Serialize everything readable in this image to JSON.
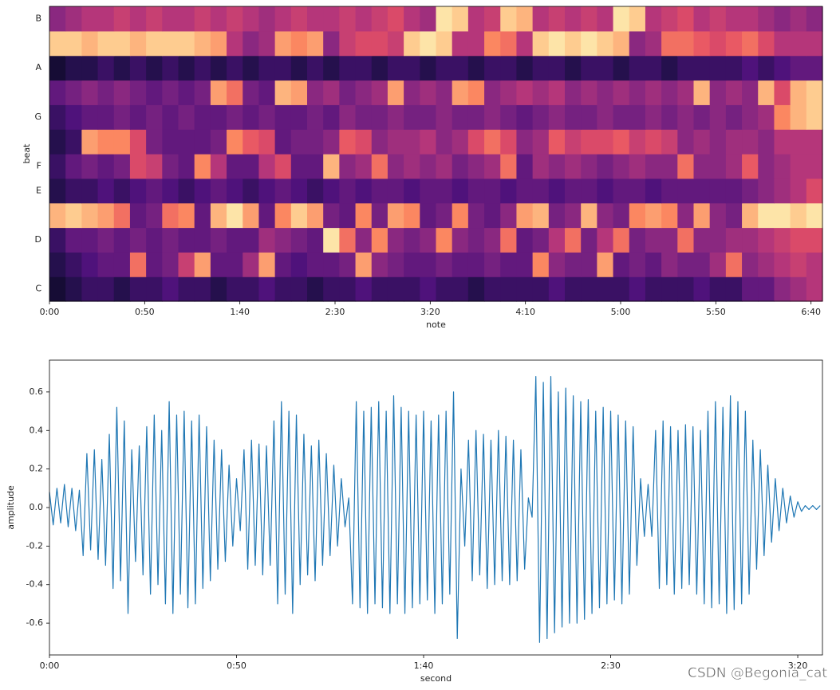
{
  "chart_data": [
    {
      "type": "heatmap",
      "x_label": "note",
      "y_label": "beat",
      "colormap": "magma",
      "xlim": [
        0,
        406
      ],
      "xticks": [
        {
          "value": 0,
          "label": "0:00"
        },
        {
          "value": 50,
          "label": "0:50"
        },
        {
          "value": 100,
          "label": "1:40"
        },
        {
          "value": 150,
          "label": "2:30"
        },
        {
          "value": 200,
          "label": "3:20"
        },
        {
          "value": 250,
          "label": "4:10"
        },
        {
          "value": 300,
          "label": "5:00"
        },
        {
          "value": 350,
          "label": "5:50"
        },
        {
          "value": 400,
          "label": "6:40"
        }
      ],
      "y_categories": [
        "C",
        null,
        "D",
        null,
        "E",
        "F",
        null,
        "G",
        null,
        "A",
        null,
        "B"
      ],
      "z": [
        [
          0.1,
          0.15,
          0.2,
          0.2,
          0.15,
          0.2,
          0.2,
          0.25,
          0.2,
          0.2,
          0.15,
          0.2,
          0.2,
          0.25,
          0.2,
          0.2,
          0.15,
          0.2,
          0.2,
          0.25,
          0.2,
          0.2,
          0.2,
          0.25,
          0.2,
          0.2,
          0.15,
          0.2,
          0.2,
          0.2,
          0.2,
          0.25,
          0.2,
          0.2,
          0.2,
          0.2,
          0.25,
          0.2,
          0.2,
          0.2,
          0.25,
          0.2,
          0.2,
          0.3,
          0.3,
          0.4,
          0.45,
          0.5
        ],
        [
          0.15,
          0.2,
          0.25,
          0.3,
          0.3,
          0.7,
          0.3,
          0.35,
          0.55,
          0.8,
          0.3,
          0.3,
          0.45,
          0.8,
          0.3,
          0.25,
          0.3,
          0.3,
          0.35,
          0.8,
          0.4,
          0.35,
          0.3,
          0.3,
          0.35,
          0.3,
          0.3,
          0.35,
          0.3,
          0.3,
          0.75,
          0.4,
          0.35,
          0.35,
          0.8,
          0.3,
          0.35,
          0.3,
          0.4,
          0.35,
          0.35,
          0.45,
          0.7,
          0.4,
          0.45,
          0.5,
          0.55,
          0.5
        ],
        [
          0.2,
          0.3,
          0.3,
          0.35,
          0.3,
          0.35,
          0.3,
          0.35,
          0.3,
          0.3,
          0.35,
          0.3,
          0.3,
          0.45,
          0.4,
          0.35,
          0.3,
          0.95,
          0.7,
          0.4,
          0.75,
          0.4,
          0.35,
          0.4,
          0.75,
          0.4,
          0.35,
          0.4,
          0.7,
          0.3,
          0.35,
          0.5,
          0.7,
          0.35,
          0.5,
          0.7,
          0.35,
          0.4,
          0.4,
          0.7,
          0.4,
          0.4,
          0.45,
          0.45,
          0.5,
          0.55,
          0.6,
          0.6
        ],
        [
          0.85,
          0.9,
          0.85,
          0.8,
          0.7,
          0.3,
          0.35,
          0.7,
          0.75,
          0.3,
          0.85,
          0.95,
          0.8,
          0.3,
          0.75,
          0.9,
          0.8,
          0.35,
          0.3,
          0.75,
          0.35,
          0.8,
          0.75,
          0.3,
          0.35,
          0.75,
          0.35,
          0.3,
          0.4,
          0.8,
          0.85,
          0.35,
          0.4,
          0.85,
          0.4,
          0.35,
          0.75,
          0.8,
          0.75,
          0.4,
          0.8,
          0.4,
          0.35,
          0.85,
          0.95,
          0.95,
          0.9,
          0.95
        ],
        [
          0.15,
          0.2,
          0.2,
          0.25,
          0.2,
          0.25,
          0.3,
          0.25,
          0.2,
          0.25,
          0.3,
          0.25,
          0.2,
          0.25,
          0.3,
          0.25,
          0.2,
          0.25,
          0.3,
          0.25,
          0.3,
          0.3,
          0.25,
          0.3,
          0.3,
          0.25,
          0.3,
          0.3,
          0.25,
          0.3,
          0.3,
          0.25,
          0.3,
          0.3,
          0.25,
          0.3,
          0.3,
          0.25,
          0.3,
          0.3,
          0.3,
          0.3,
          0.3,
          0.35,
          0.4,
          0.45,
          0.5,
          0.6
        ],
        [
          0.2,
          0.3,
          0.35,
          0.3,
          0.35,
          0.6,
          0.55,
          0.35,
          0.3,
          0.75,
          0.5,
          0.3,
          0.3,
          0.5,
          0.6,
          0.3,
          0.3,
          0.85,
          0.4,
          0.45,
          0.7,
          0.4,
          0.45,
          0.4,
          0.45,
          0.35,
          0.4,
          0.45,
          0.7,
          0.3,
          0.45,
          0.4,
          0.45,
          0.4,
          0.35,
          0.4,
          0.45,
          0.4,
          0.4,
          0.7,
          0.4,
          0.4,
          0.45,
          0.65,
          0.4,
          0.45,
          0.5,
          0.5
        ],
        [
          0.15,
          0.2,
          0.8,
          0.75,
          0.75,
          0.6,
          0.35,
          0.3,
          0.3,
          0.3,
          0.35,
          0.75,
          0.65,
          0.6,
          0.3,
          0.35,
          0.35,
          0.4,
          0.65,
          0.6,
          0.4,
          0.45,
          0.45,
          0.5,
          0.4,
          0.45,
          0.6,
          0.7,
          0.6,
          0.4,
          0.45,
          0.65,
          0.55,
          0.6,
          0.6,
          0.65,
          0.55,
          0.6,
          0.55,
          0.4,
          0.45,
          0.4,
          0.45,
          0.45,
          0.4,
          0.5,
          0.5,
          0.5
        ],
        [
          0.2,
          0.25,
          0.3,
          0.3,
          0.35,
          0.3,
          0.35,
          0.3,
          0.35,
          0.3,
          0.3,
          0.35,
          0.3,
          0.35,
          0.3,
          0.3,
          0.35,
          0.3,
          0.4,
          0.35,
          0.35,
          0.4,
          0.35,
          0.35,
          0.4,
          0.35,
          0.35,
          0.4,
          0.35,
          0.3,
          0.35,
          0.4,
          0.35,
          0.35,
          0.4,
          0.35,
          0.35,
          0.4,
          0.35,
          0.4,
          0.35,
          0.4,
          0.35,
          0.4,
          0.45,
          0.75,
          0.85,
          0.9
        ],
        [
          0.3,
          0.35,
          0.4,
          0.35,
          0.4,
          0.35,
          0.3,
          0.35,
          0.3,
          0.35,
          0.8,
          0.7,
          0.35,
          0.3,
          0.85,
          0.8,
          0.4,
          0.45,
          0.35,
          0.4,
          0.45,
          0.8,
          0.4,
          0.45,
          0.4,
          0.8,
          0.75,
          0.4,
          0.45,
          0.5,
          0.45,
          0.5,
          0.4,
          0.45,
          0.4,
          0.45,
          0.4,
          0.45,
          0.4,
          0.45,
          0.85,
          0.4,
          0.45,
          0.4,
          0.85,
          0.6,
          0.85,
          0.9
        ],
        [
          0.1,
          0.15,
          0.15,
          0.2,
          0.15,
          0.2,
          0.15,
          0.2,
          0.15,
          0.2,
          0.15,
          0.2,
          0.15,
          0.2,
          0.2,
          0.15,
          0.2,
          0.15,
          0.2,
          0.2,
          0.15,
          0.2,
          0.2,
          0.15,
          0.2,
          0.2,
          0.15,
          0.2,
          0.2,
          0.15,
          0.2,
          0.2,
          0.15,
          0.2,
          0.2,
          0.15,
          0.2,
          0.2,
          0.15,
          0.2,
          0.2,
          0.2,
          0.2,
          0.25,
          0.2,
          0.25,
          0.3,
          0.3
        ],
        [
          0.9,
          0.9,
          0.85,
          0.9,
          0.9,
          0.85,
          0.9,
          0.9,
          0.9,
          0.85,
          0.8,
          0.5,
          0.4,
          0.45,
          0.8,
          0.75,
          0.8,
          0.4,
          0.55,
          0.6,
          0.6,
          0.55,
          0.9,
          0.95,
          0.9,
          0.5,
          0.5,
          0.75,
          0.7,
          0.5,
          0.9,
          0.95,
          0.9,
          0.95,
          0.9,
          0.85,
          0.4,
          0.45,
          0.7,
          0.7,
          0.65,
          0.6,
          0.65,
          0.7,
          0.6,
          0.5,
          0.5,
          0.5
        ],
        [
          0.4,
          0.45,
          0.5,
          0.5,
          0.55,
          0.5,
          0.55,
          0.5,
          0.5,
          0.55,
          0.5,
          0.55,
          0.5,
          0.45,
          0.5,
          0.55,
          0.5,
          0.5,
          0.55,
          0.5,
          0.55,
          0.6,
          0.5,
          0.45,
          0.95,
          0.9,
          0.5,
          0.55,
          0.9,
          0.85,
          0.5,
          0.55,
          0.5,
          0.55,
          0.5,
          0.95,
          0.9,
          0.5,
          0.55,
          0.6,
          0.5,
          0.55,
          0.5,
          0.5,
          0.45,
          0.4,
          0.45,
          0.4
        ]
      ]
    },
    {
      "type": "line",
      "x_label": "second",
      "y_label": "amplitude",
      "color": "#1f77b4",
      "xlim": [
        0,
        206.6
      ],
      "ylim": [
        -0.765,
        0.765
      ],
      "xticks": [
        {
          "value": 0,
          "label": "0:00"
        },
        {
          "value": 50,
          "label": "0:50"
        },
        {
          "value": 100,
          "label": "1:40"
        },
        {
          "value": 150,
          "label": "2:30"
        },
        {
          "value": 200,
          "label": "3:20"
        }
      ],
      "yticks": [
        -0.6,
        -0.4,
        -0.2,
        {
          "value": 0,
          "label": "0.0"
        },
        0.2,
        0.4,
        0.6
      ],
      "x": [
        0,
        1,
        2,
        3,
        4,
        5,
        6,
        7,
        8,
        9,
        10,
        11,
        12,
        13,
        14,
        15,
        16,
        17,
        18,
        19,
        20,
        21,
        22,
        23,
        24,
        25,
        26,
        27,
        28,
        29,
        30,
        31,
        32,
        33,
        34,
        35,
        36,
        37,
        38,
        39,
        40,
        41,
        42,
        43,
        44,
        45,
        46,
        47,
        48,
        49,
        50,
        51,
        52,
        53,
        54,
        55,
        56,
        57,
        58,
        59,
        60,
        61,
        62,
        63,
        64,
        65,
        66,
        67,
        68,
        69,
        70,
        71,
        72,
        73,
        74,
        75,
        76,
        77,
        78,
        79,
        80,
        81,
        82,
        83,
        84,
        85,
        86,
        87,
        88,
        89,
        90,
        91,
        92,
        93,
        94,
        95,
        96,
        97,
        98,
        99,
        100,
        101,
        102,
        103,
        104,
        105,
        106,
        107,
        108,
        109,
        110,
        111,
        112,
        113,
        114,
        115,
        116,
        117,
        118,
        119,
        120,
        121,
        122,
        123,
        124,
        125,
        126,
        127,
        128,
        129,
        130,
        131,
        132,
        133,
        134,
        135,
        136,
        137,
        138,
        139,
        140,
        141,
        142,
        143,
        144,
        145,
        146,
        147,
        148,
        149,
        150,
        151,
        152,
        153,
        154,
        155,
        156,
        157,
        158,
        159,
        160,
        161,
        162,
        163,
        164,
        165,
        166,
        167,
        168,
        169,
        170,
        171,
        172,
        173,
        174,
        175,
        176,
        177,
        178,
        179,
        180,
        181,
        182,
        183,
        184,
        185,
        186,
        187,
        188,
        189,
        190,
        191,
        192,
        193,
        194,
        195,
        196,
        197,
        198,
        199,
        200,
        201,
        202,
        203,
        204,
        205,
        206
      ],
      "values": [
        0.08,
        -0.09,
        0.1,
        -0.08,
        0.12,
        -0.1,
        0.1,
        -0.12,
        0.09,
        -0.25,
        0.28,
        -0.22,
        0.3,
        -0.27,
        0.25,
        -0.3,
        0.38,
        -0.42,
        0.52,
        -0.38,
        0.45,
        -0.55,
        0.3,
        -0.28,
        0.32,
        -0.35,
        0.42,
        -0.45,
        0.48,
        -0.4,
        0.4,
        -0.5,
        0.55,
        -0.55,
        0.48,
        -0.45,
        0.5,
        -0.52,
        0.45,
        -0.5,
        0.48,
        -0.42,
        0.42,
        -0.38,
        0.35,
        -0.32,
        0.3,
        -0.28,
        0.22,
        -0.2,
        0.15,
        -0.12,
        0.3,
        -0.32,
        0.35,
        -0.3,
        0.33,
        -0.35,
        0.32,
        -0.3,
        0.45,
        -0.5,
        0.55,
        -0.45,
        0.5,
        -0.55,
        0.48,
        -0.4,
        0.38,
        -0.35,
        0.32,
        -0.38,
        0.35,
        -0.3,
        0.28,
        -0.25,
        0.22,
        -0.2,
        0.15,
        -0.1,
        0.05,
        -0.5,
        0.55,
        -0.52,
        0.5,
        -0.55,
        0.52,
        -0.5,
        0.55,
        -0.52,
        0.5,
        -0.55,
        0.58,
        -0.5,
        0.52,
        -0.55,
        0.5,
        -0.52,
        0.48,
        -0.5,
        0.5,
        -0.48,
        0.45,
        -0.55,
        0.48,
        -0.5,
        0.5,
        -0.45,
        0.6,
        -0.68,
        0.2,
        -0.2,
        0.35,
        -0.38,
        0.4,
        -0.35,
        0.38,
        -0.42,
        0.35,
        -0.4,
        0.4,
        -0.38,
        0.37,
        -0.4,
        0.35,
        -0.38,
        0.3,
        -0.32,
        0.05,
        -0.05,
        0.68,
        -0.7,
        0.65,
        -0.68,
        0.68,
        -0.65,
        0.6,
        -0.62,
        0.62,
        -0.6,
        0.58,
        -0.6,
        0.55,
        -0.58,
        0.56,
        -0.55,
        0.5,
        -0.52,
        0.52,
        -0.5,
        0.5,
        -0.48,
        0.48,
        -0.5,
        0.45,
        -0.45,
        0.42,
        -0.3,
        0.15,
        -0.15,
        0.12,
        -0.15,
        0.4,
        -0.42,
        0.45,
        -0.4,
        0.42,
        -0.45,
        0.4,
        -0.42,
        0.43,
        -0.4,
        0.42,
        -0.45,
        0.4,
        -0.5,
        0.5,
        -0.52,
        0.55,
        -0.5,
        0.52,
        -0.55,
        0.58,
        -0.53,
        0.55,
        -0.5,
        0.5,
        -0.45,
        0.35,
        -0.32,
        0.3,
        -0.25,
        0.22,
        -0.18,
        0.15,
        -0.12,
        0.1,
        -0.08,
        0.06,
        -0.05,
        0.03,
        -0.02,
        0.01,
        -0.01,
        0.01,
        -0.01,
        0.01
      ]
    }
  ],
  "watermark": "CSDN @Begonia_cat"
}
